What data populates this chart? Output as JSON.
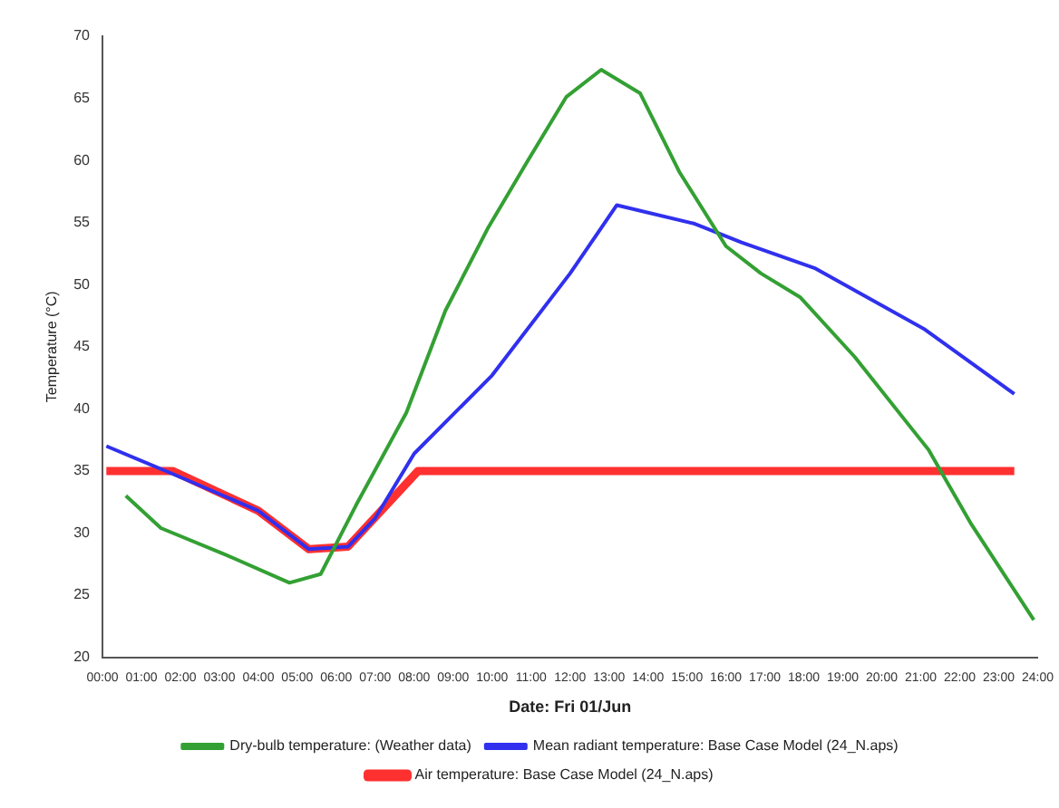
{
  "chart_data": {
    "type": "line",
    "xlabel": "Date: Fri 01/Jun",
    "ylabel": "Temperature (°C)",
    "xlim": [
      0,
      24
    ],
    "xticks": [
      {
        "value": 0,
        "label": "00:00"
      },
      {
        "value": 1,
        "label": "01:00"
      },
      {
        "value": 2,
        "label": "02:00"
      },
      {
        "value": 3,
        "label": "03:00"
      },
      {
        "value": 4,
        "label": "04:00"
      },
      {
        "value": 5,
        "label": "05:00"
      },
      {
        "value": 6,
        "label": "06:00"
      },
      {
        "value": 7,
        "label": "07:00"
      },
      {
        "value": 8,
        "label": "08:00"
      },
      {
        "value": 9,
        "label": "09:00"
      },
      {
        "value": 10,
        "label": "10:00"
      },
      {
        "value": 11,
        "label": "11:00"
      },
      {
        "value": 12,
        "label": "12:00"
      },
      {
        "value": 13,
        "label": "13:00"
      },
      {
        "value": 14,
        "label": "14:00"
      },
      {
        "value": 15,
        "label": "15:00"
      },
      {
        "value": 16,
        "label": "16:00"
      },
      {
        "value": 17,
        "label": "17:00"
      },
      {
        "value": 18,
        "label": "18:00"
      },
      {
        "value": 19,
        "label": "19:00"
      },
      {
        "value": 20,
        "label": "20:00"
      },
      {
        "value": 21,
        "label": "21:00"
      },
      {
        "value": 22,
        "label": "22:00"
      },
      {
        "value": 23,
        "label": "23:00"
      },
      {
        "value": 24,
        "label": "24:00"
      }
    ],
    "ylim": [
      20,
      70
    ],
    "yticks": [
      20,
      25,
      30,
      35,
      40,
      45,
      50,
      55,
      60,
      65,
      70
    ],
    "grid": false,
    "legend": "bottom",
    "marker": "none",
    "line_style": "solid",
    "series": [
      {
        "name": "Air temperature: Base Case Model (24_N.aps)",
        "color": "#ff3030",
        "x": [
          0.1,
          1.8,
          4,
          5.3,
          6.3,
          8.1,
          23.4
        ],
        "values": [
          35,
          35,
          31.8,
          28.7,
          28.9,
          35,
          35
        ]
      },
      {
        "name": "Mean radiant temperature: Base Case Model (24_N.aps)",
        "color": "#3030ee",
        "x": [
          0.1,
          2,
          4,
          5.3,
          6.3,
          7,
          8,
          10,
          12,
          13.2,
          15.2,
          16.4,
          18.3,
          21.1,
          23.4
        ],
        "values": [
          37,
          34.5,
          31.8,
          28.7,
          28.9,
          31.2,
          36.4,
          42.7,
          50.9,
          56.4,
          54.9,
          53.4,
          51.3,
          46.4,
          41.2
        ]
      },
      {
        "name": "Dry-bulb temperature: (Weather data)",
        "color": "#33a033",
        "x": [
          0.6,
          1.5,
          3.2,
          4.8,
          5.6,
          6.5,
          7.8,
          8.8,
          9.9,
          10.9,
          11.9,
          12.8,
          13.8,
          14.8,
          16,
          16.9,
          17.9,
          19.3,
          21.2,
          22.3,
          23.9
        ],
        "values": [
          33,
          30.4,
          28.2,
          26,
          26.7,
          32.2,
          39.7,
          47.9,
          54.6,
          59.9,
          65.1,
          67.3,
          65.4,
          59.1,
          53.1,
          50.9,
          49,
          44.2,
          36.7,
          30.7,
          23
        ]
      }
    ]
  }
}
